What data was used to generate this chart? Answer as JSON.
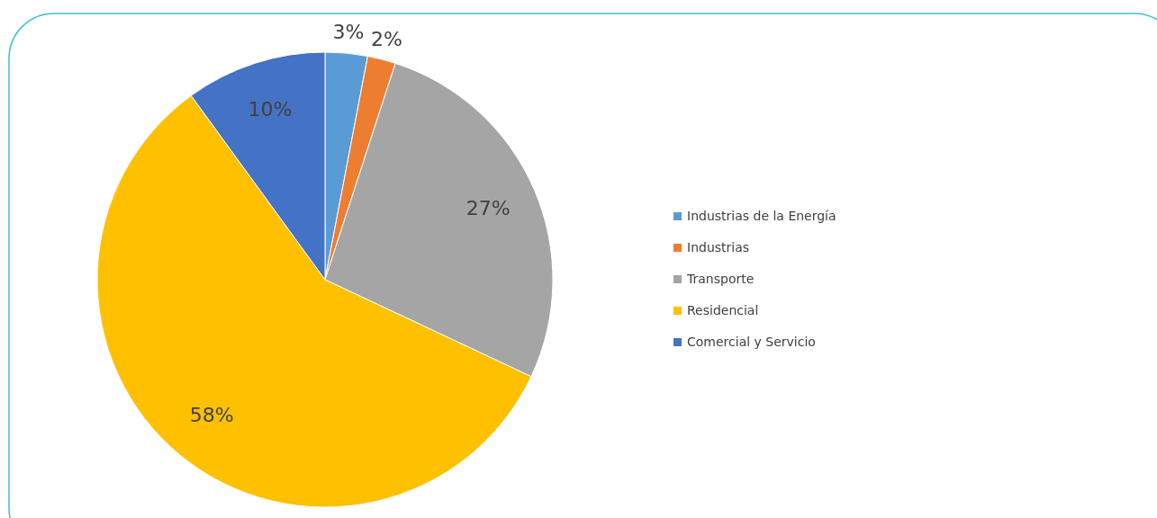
{
  "chart_data": {
    "type": "pie",
    "categories": [
      "Industrias de la Energía",
      "Industrias",
      "Transporte",
      "Residencial",
      "Comercial y Servicio"
    ],
    "values": [
      3,
      2,
      27,
      58,
      10
    ],
    "colors": [
      "#5b9bd5",
      "#ed7d31",
      "#a5a5a5",
      "#ffc000",
      "#4472c4"
    ],
    "value_labels": [
      "3%",
      "2%",
      "27%",
      "58%",
      "10%"
    ],
    "legend": "right"
  }
}
